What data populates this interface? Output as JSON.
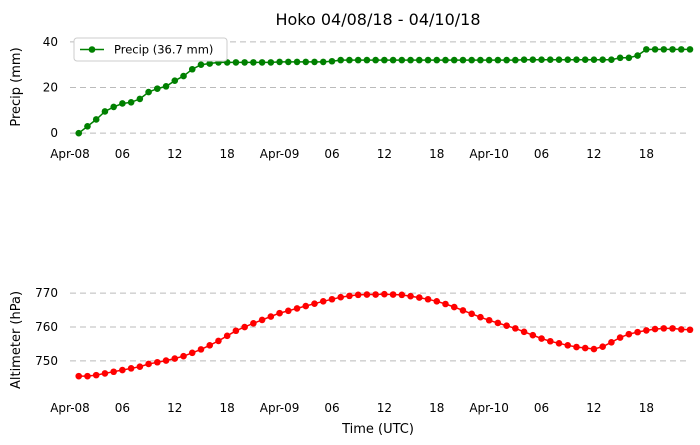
{
  "title": "Hoko 04/08/18 - 04/10/18",
  "x_tick_labels": [
    "Apr-08",
    "06",
    "12",
    "18",
    "Apr-09",
    "06",
    "12",
    "18",
    "Apr-10",
    "06",
    "12",
    "18"
  ],
  "chart_data": [
    {
      "type": "line",
      "ylabel": "Precip (mm)",
      "xlabel": "",
      "x_unit": "hours since Apr-08 00:00 UTC",
      "xlim": [
        0,
        71
      ],
      "ylim": [
        -3,
        43
      ],
      "y_ticks": [
        0,
        20,
        40
      ],
      "grid": "horizontal dashed",
      "legend": {
        "position": "top-left",
        "label": "Precip (36.7 mm)"
      },
      "color": "#008000",
      "series": [
        {
          "name": "Precip (36.7 mm)",
          "x": [
            1,
            2,
            3,
            4,
            5,
            6,
            7,
            8,
            9,
            10,
            11,
            12,
            13,
            14,
            15,
            16,
            17,
            18,
            19,
            20,
            21,
            22,
            23,
            24,
            25,
            26,
            27,
            28,
            29,
            30,
            31,
            32,
            33,
            34,
            35,
            36,
            37,
            38,
            39,
            40,
            41,
            42,
            43,
            44,
            45,
            46,
            47,
            48,
            49,
            50,
            51,
            52,
            53,
            54,
            55,
            56,
            57,
            58,
            59,
            60,
            61,
            62,
            63,
            64,
            65,
            66,
            67,
            68,
            69,
            70,
            71
          ],
          "y": [
            0,
            3,
            6,
            9.5,
            11.5,
            13,
            13.5,
            15,
            18,
            19.5,
            20.5,
            23,
            25,
            28,
            30,
            30.5,
            31,
            31,
            31,
            31,
            31,
            31,
            31,
            31.2,
            31.2,
            31.2,
            31.2,
            31.2,
            31.2,
            31.5,
            32,
            32,
            32,
            32,
            32,
            32,
            32,
            32,
            32,
            32,
            32,
            32,
            32,
            32,
            32,
            32,
            32,
            32,
            32,
            32,
            32,
            32.2,
            32.2,
            32.2,
            32.2,
            32.2,
            32.2,
            32.2,
            32.2,
            32.2,
            32.2,
            32.2,
            33,
            33,
            34,
            36.7,
            36.7,
            36.7,
            36.7,
            36.7,
            36.7
          ]
        }
      ]
    },
    {
      "type": "line",
      "ylabel": "Altimeter (hPa)",
      "xlabel": "Time (UTC)",
      "x_unit": "hours since Apr-08 00:00 UTC",
      "xlim": [
        0,
        71
      ],
      "ylim": [
        742,
        773
      ],
      "y_ticks": [
        750,
        760,
        770
      ],
      "grid": "horizontal dashed",
      "color": "#ff0000",
      "series": [
        {
          "name": "Altimeter",
          "x": [
            1,
            2,
            3,
            4,
            5,
            6,
            7,
            8,
            9,
            10,
            11,
            12,
            13,
            14,
            15,
            16,
            17,
            18,
            19,
            20,
            21,
            22,
            23,
            24,
            25,
            26,
            27,
            28,
            29,
            30,
            31,
            32,
            33,
            34,
            35,
            36,
            37,
            38,
            39,
            40,
            41,
            42,
            43,
            44,
            45,
            46,
            47,
            48,
            49,
            50,
            51,
            52,
            53,
            54,
            55,
            56,
            57,
            58,
            59,
            60,
            61,
            62,
            63,
            64,
            65,
            66,
            67,
            68,
            69,
            70,
            71
          ],
          "y": [
            745.5,
            745.5,
            745.8,
            746.3,
            746.8,
            747.3,
            747.8,
            748.3,
            749.1,
            749.6,
            750.1,
            750.7,
            751.4,
            752.4,
            753.4,
            754.6,
            755.9,
            757.4,
            758.9,
            760,
            761.1,
            762.1,
            763.1,
            764.1,
            764.8,
            765.5,
            766.2,
            766.9,
            767.6,
            768.2,
            768.8,
            769.2,
            769.5,
            769.6,
            769.6,
            769.7,
            769.6,
            769.5,
            769.1,
            768.7,
            768.2,
            767.6,
            766.8,
            765.9,
            764.9,
            763.9,
            762.9,
            762,
            761.2,
            760.4,
            759.6,
            758.6,
            757.6,
            756.6,
            755.8,
            755.2,
            754.6,
            754.1,
            753.8,
            753.5,
            754.2,
            755.5,
            756.9,
            757.9,
            758.5,
            759,
            759.4,
            759.6,
            759.6,
            759.3,
            759.2
          ]
        }
      ]
    }
  ]
}
